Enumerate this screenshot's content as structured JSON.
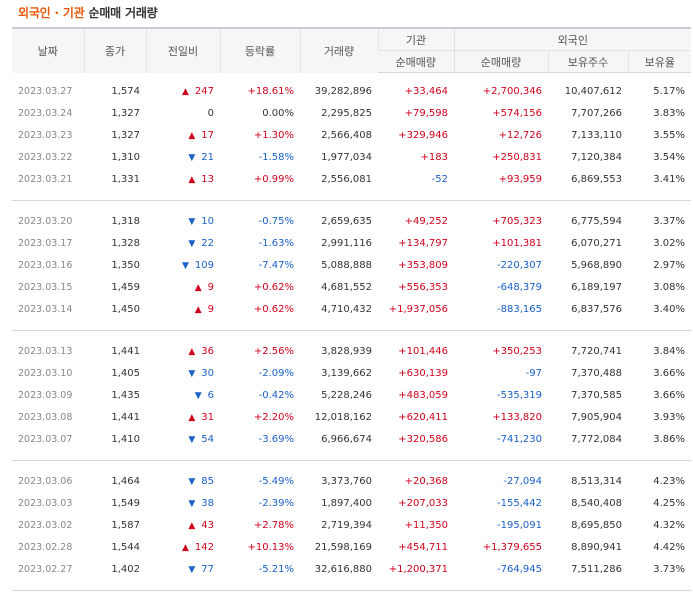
{
  "title": {
    "part1": "외국인 · 기관",
    "part2": " 순매매 거래량"
  },
  "headers": {
    "date": "날짜",
    "close": "종가",
    "change": "전일비",
    "rate": "등락률",
    "volume": "거래량",
    "inst": "기관",
    "foreign": "외국인",
    "inst_net": "순매매량",
    "for_net": "순매매량",
    "for_hold": "보유주수",
    "for_ratio": "보유율"
  },
  "icons": {
    "up": "triangle-up-icon",
    "down": "triangle-down-icon"
  },
  "colors": {
    "up": "#d0021b",
    "down": "#1a60c8",
    "accent": "#e8590c"
  },
  "groups": [
    [
      {
        "date": "2023.03.27",
        "close": "1,574",
        "dir": "up",
        "change": "247",
        "rate": "+18.61%",
        "volume": "39,282,896",
        "inst": "+33,464",
        "foreign": "+2,700,346",
        "hold": "10,407,612",
        "ratio": "5.17%"
      },
      {
        "date": "2023.03.24",
        "close": "1,327",
        "dir": "none",
        "change": "0",
        "rate": "0.00%",
        "volume": "2,295,825",
        "inst": "+79,598",
        "foreign": "+574,156",
        "hold": "7,707,266",
        "ratio": "3.83%"
      },
      {
        "date": "2023.03.23",
        "close": "1,327",
        "dir": "up",
        "change": "17",
        "rate": "+1.30%",
        "volume": "2,566,408",
        "inst": "+329,946",
        "foreign": "+12,726",
        "hold": "7,133,110",
        "ratio": "3.55%"
      },
      {
        "date": "2023.03.22",
        "close": "1,310",
        "dir": "down",
        "change": "21",
        "rate": "-1.58%",
        "volume": "1,977,034",
        "inst": "+183",
        "foreign": "+250,831",
        "hold": "7,120,384",
        "ratio": "3.54%"
      },
      {
        "date": "2023.03.21",
        "close": "1,331",
        "dir": "up",
        "change": "13",
        "rate": "+0.99%",
        "volume": "2,556,081",
        "inst": "-52",
        "foreign": "+93,959",
        "hold": "6,869,553",
        "ratio": "3.41%"
      }
    ],
    [
      {
        "date": "2023.03.20",
        "close": "1,318",
        "dir": "down",
        "change": "10",
        "rate": "-0.75%",
        "volume": "2,659,635",
        "inst": "+49,252",
        "foreign": "+705,323",
        "hold": "6,775,594",
        "ratio": "3.37%"
      },
      {
        "date": "2023.03.17",
        "close": "1,328",
        "dir": "down",
        "change": "22",
        "rate": "-1.63%",
        "volume": "2,991,116",
        "inst": "+134,797",
        "foreign": "+101,381",
        "hold": "6,070,271",
        "ratio": "3.02%"
      },
      {
        "date": "2023.03.16",
        "close": "1,350",
        "dir": "down",
        "change": "109",
        "rate": "-7.47%",
        "volume": "5,088,888",
        "inst": "+353,809",
        "foreign": "-220,307",
        "hold": "5,968,890",
        "ratio": "2.97%"
      },
      {
        "date": "2023.03.15",
        "close": "1,459",
        "dir": "up",
        "change": "9",
        "rate": "+0.62%",
        "volume": "4,681,552",
        "inst": "+556,353",
        "foreign": "-648,379",
        "hold": "6,189,197",
        "ratio": "3.08%"
      },
      {
        "date": "2023.03.14",
        "close": "1,450",
        "dir": "up",
        "change": "9",
        "rate": "+0.62%",
        "volume": "4,710,432",
        "inst": "+1,937,056",
        "foreign": "-883,165",
        "hold": "6,837,576",
        "ratio": "3.40%"
      }
    ],
    [
      {
        "date": "2023.03.13",
        "close": "1,441",
        "dir": "up",
        "change": "36",
        "rate": "+2.56%",
        "volume": "3,828,939",
        "inst": "+101,446",
        "foreign": "+350,253",
        "hold": "7,720,741",
        "ratio": "3.84%"
      },
      {
        "date": "2023.03.10",
        "close": "1,405",
        "dir": "down",
        "change": "30",
        "rate": "-2.09%",
        "volume": "3,139,662",
        "inst": "+630,139",
        "foreign": "-97",
        "hold": "7,370,488",
        "ratio": "3.66%"
      },
      {
        "date": "2023.03.09",
        "close": "1,435",
        "dir": "down",
        "change": "6",
        "rate": "-0.42%",
        "volume": "5,228,246",
        "inst": "+483,059",
        "foreign": "-535,319",
        "hold": "7,370,585",
        "ratio": "3.66%"
      },
      {
        "date": "2023.03.08",
        "close": "1,441",
        "dir": "up",
        "change": "31",
        "rate": "+2.20%",
        "volume": "12,018,162",
        "inst": "+620,411",
        "foreign": "+133,820",
        "hold": "7,905,904",
        "ratio": "3.93%"
      },
      {
        "date": "2023.03.07",
        "close": "1,410",
        "dir": "down",
        "change": "54",
        "rate": "-3.69%",
        "volume": "6,966,674",
        "inst": "+320,586",
        "foreign": "-741,230",
        "hold": "7,772,084",
        "ratio": "3.86%"
      }
    ],
    [
      {
        "date": "2023.03.06",
        "close": "1,464",
        "dir": "down",
        "change": "85",
        "rate": "-5.49%",
        "volume": "3,373,760",
        "inst": "+20,368",
        "foreign": "-27,094",
        "hold": "8,513,314",
        "ratio": "4.23%"
      },
      {
        "date": "2023.03.03",
        "close": "1,549",
        "dir": "down",
        "change": "38",
        "rate": "-2.39%",
        "volume": "1,897,400",
        "inst": "+207,033",
        "foreign": "-155,442",
        "hold": "8,540,408",
        "ratio": "4.25%"
      },
      {
        "date": "2023.03.02",
        "close": "1,587",
        "dir": "up",
        "change": "43",
        "rate": "+2.78%",
        "volume": "2,719,394",
        "inst": "+11,350",
        "foreign": "-195,091",
        "hold": "8,695,850",
        "ratio": "4.32%"
      },
      {
        "date": "2023.02.28",
        "close": "1,544",
        "dir": "up",
        "change": "142",
        "rate": "+10.13%",
        "volume": "21,598,169",
        "inst": "+454,711",
        "foreign": "+1,379,655",
        "hold": "8,890,941",
        "ratio": "4.42%"
      },
      {
        "date": "2023.02.27",
        "close": "1,402",
        "dir": "down",
        "change": "77",
        "rate": "-5.21%",
        "volume": "32,616,880",
        "inst": "+1,200,371",
        "foreign": "-764,945",
        "hold": "7,511,286",
        "ratio": "3.73%"
      }
    ]
  ]
}
